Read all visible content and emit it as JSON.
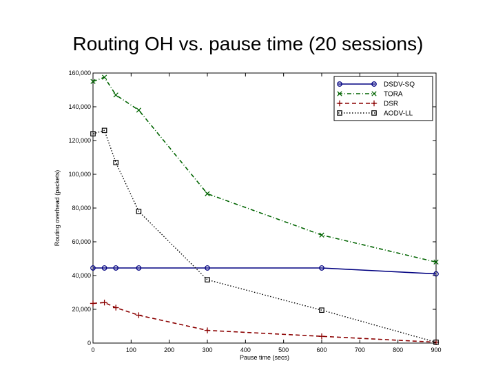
{
  "slide": {
    "title": "Routing OH vs. pause time (20 sessions)"
  },
  "chart_data": {
    "type": "line",
    "title": "Routing OH vs. pause time (20 sessions)",
    "xlabel": "Pause time (secs)",
    "ylabel": "Routing overhead (packets)",
    "xlim": [
      0,
      900
    ],
    "ylim": [
      0,
      160000
    ],
    "x_ticks": [
      0,
      100,
      200,
      300,
      400,
      500,
      600,
      700,
      800,
      900
    ],
    "x_tick_labels": [
      "0",
      "100",
      "200",
      "300",
      "400",
      "500",
      "600",
      "700",
      "800",
      "900"
    ],
    "y_ticks": [
      0,
      20000,
      40000,
      60000,
      80000,
      100000,
      120000,
      140000,
      160000
    ],
    "y_tick_labels": [
      "0",
      "20,000",
      "40,000",
      "60,000",
      "80,000",
      "100,000",
      "120,000",
      "140,000",
      "160,000"
    ],
    "grid": false,
    "legend_position": "top-right",
    "series": [
      {
        "name": "DSDV-SQ",
        "color": "#000080",
        "marker": "circle",
        "line": "solid",
        "x": [
          0,
          30,
          60,
          120,
          300,
          600,
          900
        ],
        "values": [
          44500,
          44500,
          44500,
          44500,
          44500,
          44500,
          41000
        ]
      },
      {
        "name": "TORA",
        "color": "#006400",
        "marker": "x",
        "line": "dashdot",
        "x": [
          0,
          30,
          60,
          120,
          300,
          600,
          900
        ],
        "values": [
          155000,
          157500,
          147000,
          138000,
          88500,
          64000,
          48000
        ]
      },
      {
        "name": "DSR",
        "color": "#8b0000",
        "marker": "plus",
        "line": "dashed",
        "x": [
          0,
          30,
          60,
          120,
          300,
          600,
          900
        ],
        "values": [
          23500,
          24000,
          21000,
          16500,
          7500,
          4000,
          500
        ]
      },
      {
        "name": "AODV-LL",
        "color": "#000000",
        "marker": "square",
        "line": "dotted",
        "x": [
          0,
          30,
          60,
          120,
          300,
          600,
          900
        ],
        "values": [
          124000,
          126000,
          107000,
          78000,
          37500,
          19500,
          500
        ]
      }
    ]
  }
}
